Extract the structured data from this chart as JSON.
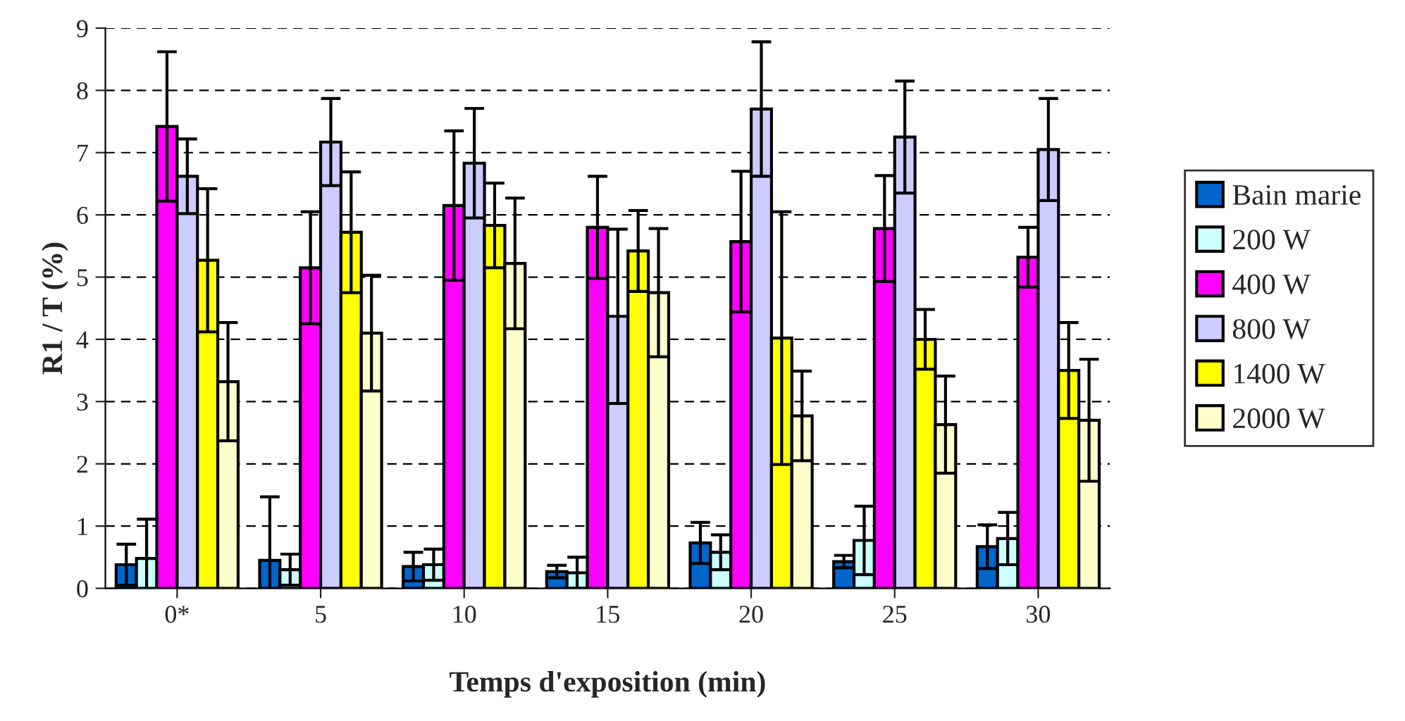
{
  "chart_data": {
    "type": "bar",
    "xlabel": "Temps d'exposition (min)",
    "ylabel": "R1 / T (%)",
    "categories": [
      "0*",
      "5",
      "10",
      "15",
      "20",
      "25",
      "30"
    ],
    "series": [
      {
        "name": "Bain marie",
        "color": "#0066cc",
        "values": [
          0.38,
          0.45,
          0.35,
          0.27,
          0.73,
          0.43,
          0.67
        ],
        "errors": [
          0.33,
          1.02,
          0.23,
          0.1,
          0.33,
          0.1,
          0.35
        ]
      },
      {
        "name": "200 W",
        "color": "#ccffff",
        "values": [
          0.48,
          0.3,
          0.38,
          0.25,
          0.58,
          0.77,
          0.8
        ],
        "errors": [
          0.63,
          0.25,
          0.25,
          0.25,
          0.28,
          0.55,
          0.42
        ]
      },
      {
        "name": "400 W",
        "color": "#ff00ff",
        "values": [
          7.42,
          5.15,
          6.15,
          5.8,
          5.57,
          5.78,
          5.32
        ],
        "errors": [
          1.2,
          0.9,
          1.2,
          0.82,
          1.13,
          0.85,
          0.48
        ]
      },
      {
        "name": "800 W",
        "color": "#ccccff",
        "values": [
          6.62,
          7.17,
          6.83,
          4.37,
          7.7,
          7.25,
          7.05
        ],
        "errors": [
          0.6,
          0.7,
          0.88,
          1.4,
          1.08,
          0.9,
          0.82
        ]
      },
      {
        "name": "1400 W",
        "color": "#ffff00",
        "values": [
          5.27,
          5.72,
          5.83,
          5.42,
          4.02,
          4.0,
          3.5
        ],
        "errors": [
          1.15,
          0.97,
          0.68,
          0.65,
          2.03,
          0.48,
          0.77
        ]
      },
      {
        "name": "2000 W",
        "color": "#ffffcc",
        "values": [
          3.32,
          4.1,
          5.22,
          4.75,
          2.77,
          2.63,
          2.7
        ],
        "errors": [
          0.95,
          0.93,
          1.05,
          1.03,
          0.72,
          0.78,
          0.98
        ]
      }
    ],
    "ylim": [
      0,
      9
    ],
    "yticks": [
      0,
      1,
      2,
      3,
      4,
      5,
      6,
      7,
      8,
      9
    ],
    "grid": "y",
    "legend": "right"
  }
}
